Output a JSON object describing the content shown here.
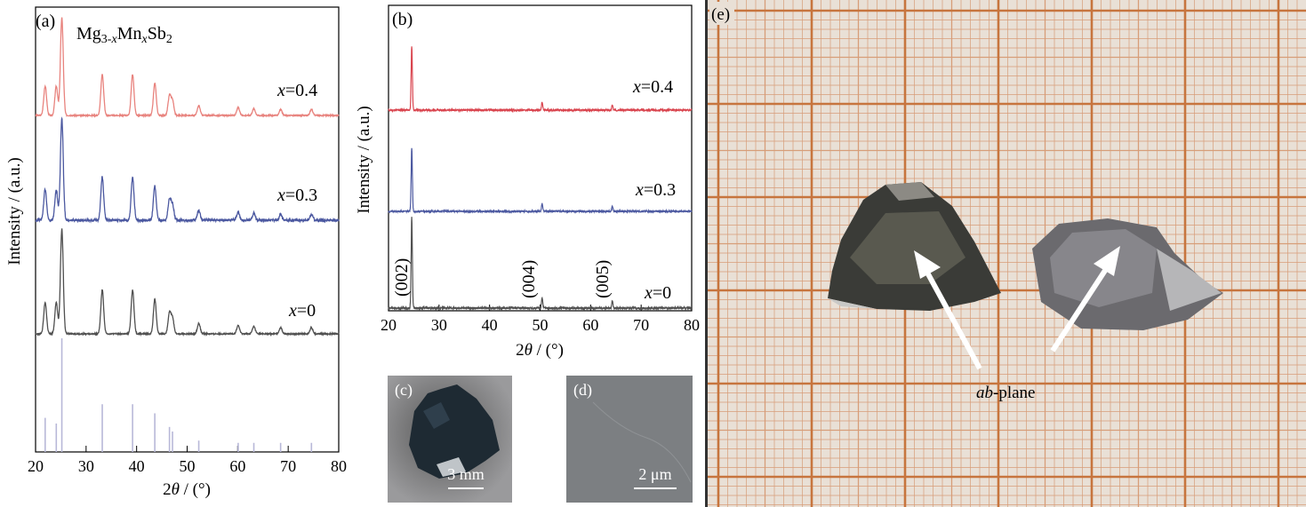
{
  "chart_data": [
    {
      "panel": "(a)",
      "type": "line",
      "title": "Mg3-xMnxSb2",
      "xlabel": "2θ / (°)",
      "ylabel": "Intensity / (a.u.)",
      "xlim": [
        20,
        80
      ],
      "xticks": [
        "20",
        "30",
        "40",
        "50",
        "60",
        "70",
        "80"
      ],
      "grid": false,
      "series": [
        {
          "name": "x=0.4",
          "color": "#e8837e"
        },
        {
          "name": "x=0.3",
          "color": "#4b58a0"
        },
        {
          "name": "x=0",
          "color": "#505050"
        }
      ],
      "peaks_2theta": [
        21.9,
        24.1,
        25.2,
        33.2,
        39.2,
        43.6,
        46.5,
        47.1,
        52.3,
        60.1,
        63.2,
        68.5,
        74.6
      ],
      "peak_rel_intensity": [
        0.3,
        0.3,
        1.0,
        0.42,
        0.42,
        0.33,
        0.2,
        0.15,
        0.1,
        0.08,
        0.07,
        0.06,
        0.06
      ],
      "reference_sticks": {
        "color": "#b8b8d8",
        "positions": [
          21.9,
          24.1,
          25.2,
          33.2,
          39.2,
          43.6,
          46.5,
          47.1,
          52.3,
          60.1,
          63.2,
          68.5,
          74.6
        ],
        "heights": [
          0.3,
          0.25,
          1.0,
          0.42,
          0.42,
          0.34,
          0.22,
          0.18,
          0.1,
          0.08,
          0.08,
          0.08,
          0.08
        ]
      }
    },
    {
      "panel": "(b)",
      "type": "line",
      "xlabel": "2θ / (°)",
      "ylabel": "Intensity / (a.u.)",
      "xlim": [
        20,
        80
      ],
      "xticks": [
        "20",
        "30",
        "40",
        "50",
        "60",
        "70",
        "80"
      ],
      "grid": false,
      "series": [
        {
          "name": "x=0.4",
          "color": "#d9444e"
        },
        {
          "name": "x=0.3",
          "color": "#4b58a0"
        },
        {
          "name": "x=0",
          "color": "#505050"
        }
      ],
      "peaks_2theta": [
        24.6,
        50.4,
        64.3
      ],
      "peak_labels": [
        "(002)",
        "(004)",
        "(005)"
      ],
      "peak_rel_intensity": [
        1.0,
        0.12,
        0.08
      ]
    }
  ],
  "photos": {
    "c": {
      "label": "(c)",
      "scale": "3 mm"
    },
    "d": {
      "label": "(d)",
      "scale": "2 μm"
    },
    "e": {
      "label": "(e)",
      "annotation": "ab",
      "annotation_suffix": "-plane"
    }
  }
}
